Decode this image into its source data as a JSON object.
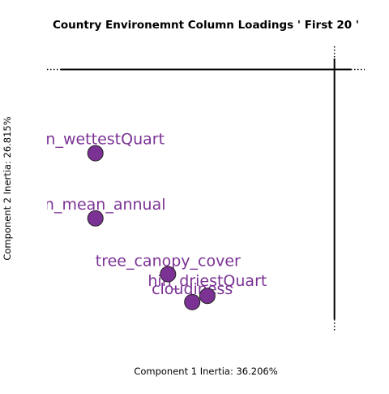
{
  "chart_data": {
    "type": "scatter",
    "title": "Country Environemnt Column Loadings ' First 20 '",
    "xlabel": "Component 1 Inertia: 36.206%",
    "ylabel": "Component 2 Inertia: 26.815%",
    "grid": false,
    "axes_lines_at_origin": true,
    "xlim": [
      -0.95,
      0.1
    ],
    "ylim": [
      -0.85,
      0.08
    ],
    "point_color": "#7b3294",
    "label_color": "#7b3294",
    "points": [
      {
        "label": "precip_wettestQuart",
        "x": -0.79,
        "y": -0.27,
        "shown_label": "n_wettestQuart"
      },
      {
        "label": "precip_mean_annual",
        "x": -0.79,
        "y": -0.48,
        "shown_label": "n_mean_annual"
      },
      {
        "label": "tree_canopy_cover",
        "x": -0.55,
        "y": -0.66,
        "shown_label": "tree_canopy_cover"
      },
      {
        "label": "precip_driestQuart",
        "x": -0.42,
        "y": -0.73,
        "shown_label": "hin_driestQuart"
      },
      {
        "label": "cloudiness",
        "x": -0.47,
        "y": -0.75,
        "shown_label": "cloudiness"
      }
    ]
  }
}
